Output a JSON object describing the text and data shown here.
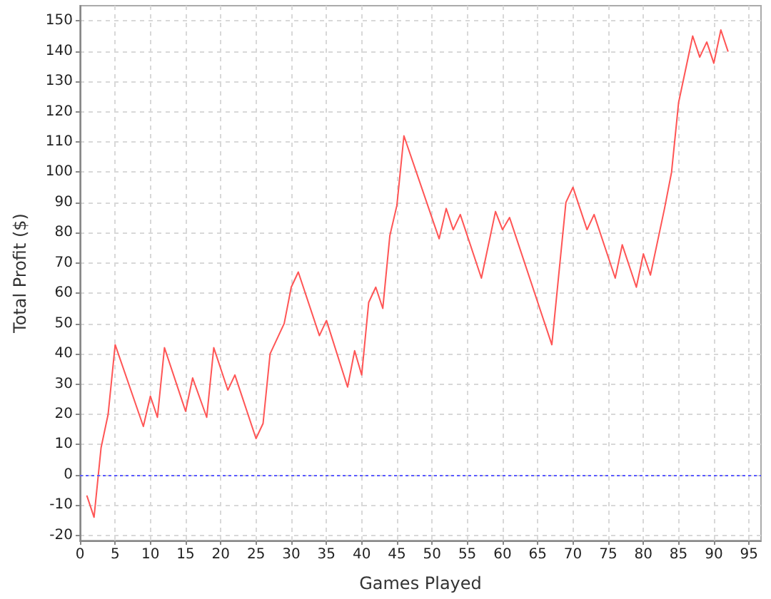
{
  "chart_data": {
    "type": "line",
    "xlabel": "Games Played",
    "ylabel": "Total Profit ($)",
    "x": [
      1,
      2,
      3,
      4,
      5,
      9,
      10,
      11,
      12,
      15,
      16,
      18,
      19,
      21,
      22,
      25,
      26,
      27,
      29,
      30,
      31,
      34,
      35,
      38,
      39,
      40,
      41,
      42,
      43,
      44,
      45,
      46,
      51,
      52,
      53,
      54,
      57,
      59,
      60,
      61,
      67,
      69,
      70,
      72,
      73,
      76,
      77,
      79,
      80,
      81,
      83,
      84,
      85,
      87,
      88,
      89,
      90,
      91,
      92
    ],
    "values": [
      -7,
      -14,
      9,
      20,
      43,
      16,
      26,
      19,
      42,
      21,
      32,
      19,
      42,
      28,
      33,
      12,
      17,
      40,
      50,
      62,
      67,
      46,
      51,
      29,
      41,
      33,
      57,
      62,
      55,
      79,
      89,
      112,
      78,
      88,
      81,
      86,
      65,
      87,
      81,
      85,
      43,
      90,
      95,
      81,
      86,
      65,
      76,
      62,
      73,
      66,
      88,
      100,
      123,
      145,
      138,
      143,
      136,
      147,
      140
    ],
    "color": "#ff5555",
    "xlim": [
      0,
      96.7
    ],
    "ylim": [
      -21.7,
      155
    ],
    "xticks": [
      0,
      5,
      10,
      15,
      20,
      25,
      30,
      35,
      40,
      45,
      50,
      55,
      60,
      65,
      70,
      75,
      80,
      85,
      90,
      95
    ],
    "yticks": [
      -20,
      -10,
      0,
      10,
      20,
      30,
      40,
      50,
      60,
      70,
      80,
      90,
      100,
      110,
      120,
      130,
      140,
      150
    ],
    "grid": true,
    "marker": "none",
    "line_style": "solid",
    "ref_lines": [
      {
        "axis": "y",
        "value": 0,
        "color": "#5a5aff",
        "line_style": "dotted"
      }
    ]
  }
}
